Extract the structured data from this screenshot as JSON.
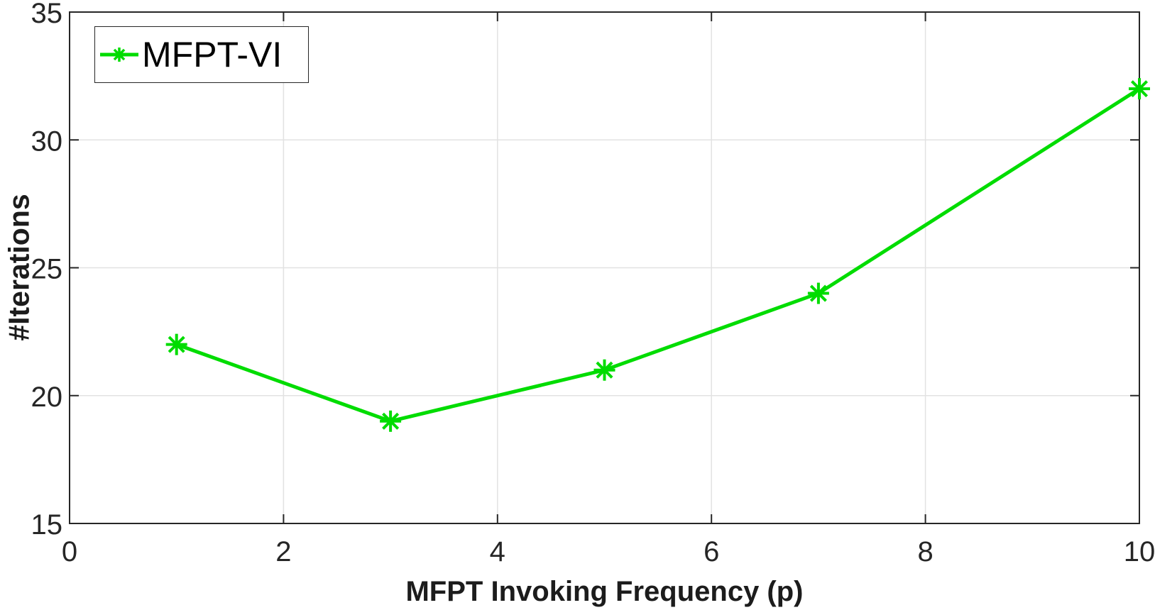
{
  "chart_data": {
    "type": "line",
    "title": "",
    "xlabel": "MFPT Invoking Frequency (p)",
    "ylabel": "#Iterations",
    "xlim": [
      0,
      10
    ],
    "ylim": [
      15,
      35
    ],
    "xticks": [
      0,
      2,
      4,
      6,
      8,
      10
    ],
    "yticks": [
      15,
      20,
      25,
      30,
      35
    ],
    "grid": true,
    "legend_position": "top-left",
    "series": [
      {
        "name": "MFPT-VI",
        "x": [
          1,
          3,
          5,
          7,
          10
        ],
        "values": [
          22,
          19,
          21,
          24,
          32
        ],
        "color": "#00DC00",
        "marker": "asterisk",
        "line_width": 5
      }
    ],
    "colors": {
      "axis": "#262626",
      "grid": "#E2E2E2",
      "tick_label": "#262626",
      "axis_label": "#1C1C1C",
      "legend_text": "#000000",
      "legend_border": "#262626",
      "background": "#FFFFFF"
    }
  }
}
